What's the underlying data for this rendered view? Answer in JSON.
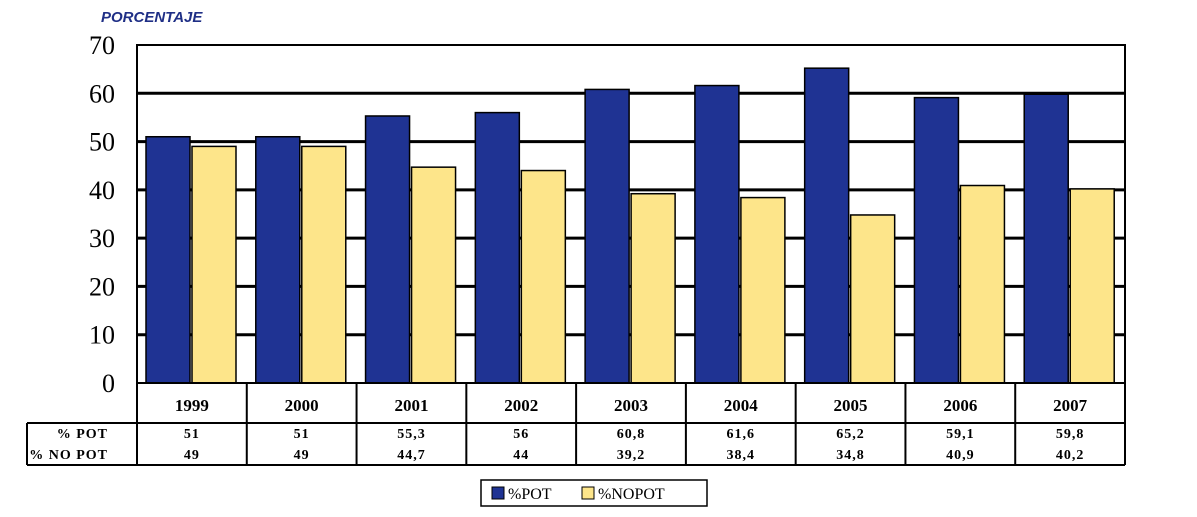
{
  "chart_data": {
    "type": "bar",
    "ylabel": "PORCENTAJE",
    "ylim": [
      0,
      70
    ],
    "yticks": [
      0,
      10,
      20,
      30,
      40,
      50,
      60,
      70
    ],
    "grid": true,
    "legend_position": "bottom",
    "categories": [
      "1999",
      "2000",
      "2001",
      "2002",
      "2003",
      "2004",
      "2005",
      "2006",
      "2007"
    ],
    "series": [
      {
        "name": "%POT",
        "table_label": "% POT",
        "color": "#1f3393",
        "values": [
          51,
          51,
          55.3,
          56,
          60.8,
          61.6,
          65.2,
          59.1,
          59.8
        ],
        "display": [
          "51",
          "51",
          "55,3",
          "56",
          "60,8",
          "61,6",
          "65,2",
          "59,1",
          "59,8"
        ]
      },
      {
        "name": "%NOPOT",
        "table_label": "% NO POT",
        "color": "#fde58a",
        "values": [
          49,
          49,
          44.7,
          44,
          39.2,
          38.4,
          34.8,
          40.9,
          40.2
        ],
        "display": [
          "49",
          "49",
          "44,7",
          "44",
          "39,2",
          "38,4",
          "34,8",
          "40,9",
          "40,2"
        ]
      }
    ]
  }
}
